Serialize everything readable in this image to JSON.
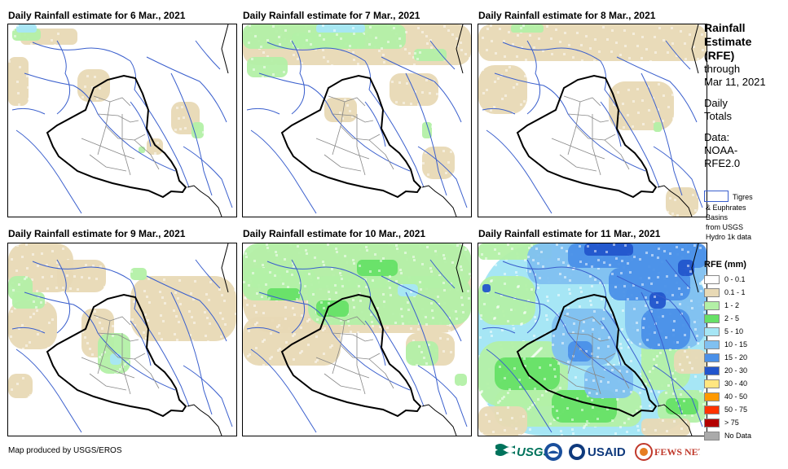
{
  "panels": [
    {
      "title": "Daily Rainfall estimate for 6 Mar., 2021"
    },
    {
      "title": "Daily Rainfall estimate for 7 Mar., 2021"
    },
    {
      "title": "Daily Rainfall estimate for 8 Mar., 2021"
    },
    {
      "title": "Daily Rainfall estimate for 9 Mar., 2021"
    },
    {
      "title": "Daily Rainfall estimate for 10 Mar., 2021"
    },
    {
      "title": "Daily Rainfall estimate for 11 Mar., 2021"
    }
  ],
  "sidebar": {
    "title_lines": [
      "Rainfall",
      "Estimate",
      "(RFE)"
    ],
    "through": "through",
    "date": "Mar 11, 2021",
    "daily_lines": [
      "Daily",
      "Totals"
    ],
    "data_lines": [
      "Data:",
      "NOAA-",
      "RFE2.0"
    ],
    "basin_lines": [
      "Tigres",
      "& Euphrates",
      "Basins",
      "from USGS",
      "Hydro 1k data"
    ]
  },
  "legend": {
    "title": "RFE (mm)",
    "items": [
      {
        "label": "0 - 0.1",
        "color": "#ffffff"
      },
      {
        "label": "0.1 - 1",
        "color": "#e8d9b5"
      },
      {
        "label": "1 - 2",
        "color": "#b3f0a6"
      },
      {
        "label": "2 - 5",
        "color": "#66e066"
      },
      {
        "label": "5 - 10",
        "color": "#a6e6f5"
      },
      {
        "label": "10 - 15",
        "color": "#80c0f0"
      },
      {
        "label": "15 - 20",
        "color": "#4a90e8"
      },
      {
        "label": "20 - 30",
        "color": "#2255cc"
      },
      {
        "label": "30 - 40",
        "color": "#ffe680"
      },
      {
        "label": "40 - 50",
        "color": "#ff9900"
      },
      {
        "label": "50 - 75",
        "color": "#ff3300"
      },
      {
        "label": "> 75",
        "color": "#b30000"
      },
      {
        "label": "No Data",
        "color": "#aaaaaa"
      }
    ]
  },
  "footer": {
    "credit": "Map produced by USGS/EROS"
  },
  "logos": {
    "usgs": "USGS",
    "usaid": "USAID",
    "fewsnet": "FEWS NET"
  }
}
